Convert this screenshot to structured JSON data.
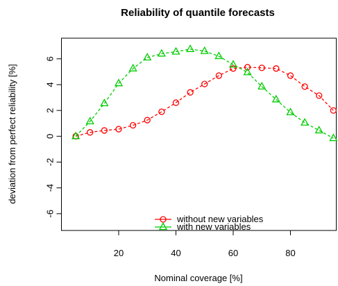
{
  "chart_data": {
    "type": "line",
    "title": "Reliability of quantile forecasts",
    "x_label": "Nominal coverage [%]",
    "y_label": "deviation from perfect reliability [%]",
    "x": [
      5,
      10,
      15,
      20,
      25,
      30,
      35,
      40,
      45,
      50,
      55,
      60,
      65,
      70,
      75,
      80,
      85,
      90,
      95
    ],
    "series": [
      {
        "name": "without new variables",
        "color": "#ff0000",
        "marker": "circle",
        "values": [
          0,
          0.3,
          0.45,
          0.55,
          0.85,
          1.25,
          1.9,
          2.6,
          3.4,
          4.05,
          4.7,
          5.25,
          5.35,
          5.3,
          5.25,
          4.7,
          3.85,
          3.15,
          2.0
        ]
      },
      {
        "name": "with new variables",
        "color": "#00cd00",
        "marker": "triangle",
        "values": [
          0,
          1.15,
          2.55,
          4.1,
          5.25,
          6.1,
          6.4,
          6.55,
          6.75,
          6.6,
          6.2,
          5.55,
          4.95,
          3.85,
          2.85,
          1.85,
          1.05,
          0.45,
          -0.15
        ]
      }
    ],
    "xlim": [
      0,
      96
    ],
    "ylim": [
      -7.3,
      7.6
    ],
    "xticks": [
      20,
      40,
      60,
      80
    ],
    "yticks": [
      -6,
      -4,
      -2,
      0,
      2,
      4,
      6
    ]
  }
}
